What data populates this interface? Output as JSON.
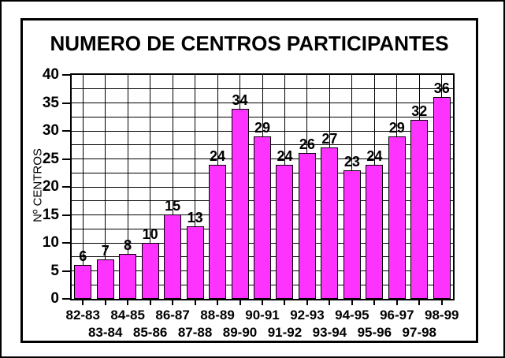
{
  "chart_data": {
    "type": "bar",
    "title": "NUMERO DE CENTROS PARTICIPANTES",
    "ylabel": "Nº CENTROS",
    "xlabel": "",
    "categories": [
      "82-83",
      "83-84",
      "84-85",
      "85-86",
      "86-87",
      "87-88",
      "88-89",
      "89-90",
      "90-91",
      "91-92",
      "92-93",
      "93-94",
      "94-95",
      "95-96",
      "96-97",
      "97-98",
      "98-99"
    ],
    "values": [
      6,
      7,
      8,
      10,
      15,
      13,
      24,
      34,
      29,
      24,
      26,
      27,
      23,
      24,
      29,
      32,
      36
    ],
    "data_labels": [
      6,
      7,
      8,
      10,
      15,
      13,
      24,
      34,
      29,
      24,
      26,
      27,
      23,
      24,
      29,
      32,
      36
    ],
    "ylim": [
      0,
      40
    ],
    "y_tick_labels": [
      "0",
      "5",
      "10",
      "15",
      "20",
      "25",
      "30",
      "35",
      "40"
    ],
    "y_major_step": 5,
    "y_minor_step": 2.5,
    "grid": true,
    "legend": "none",
    "x_label_stagger": true,
    "colors": {
      "bar_fill": "#FF33FF",
      "bar_border": "#000000",
      "grid": "#000000",
      "text": "#000000",
      "background": "#FFFFFF"
    }
  }
}
